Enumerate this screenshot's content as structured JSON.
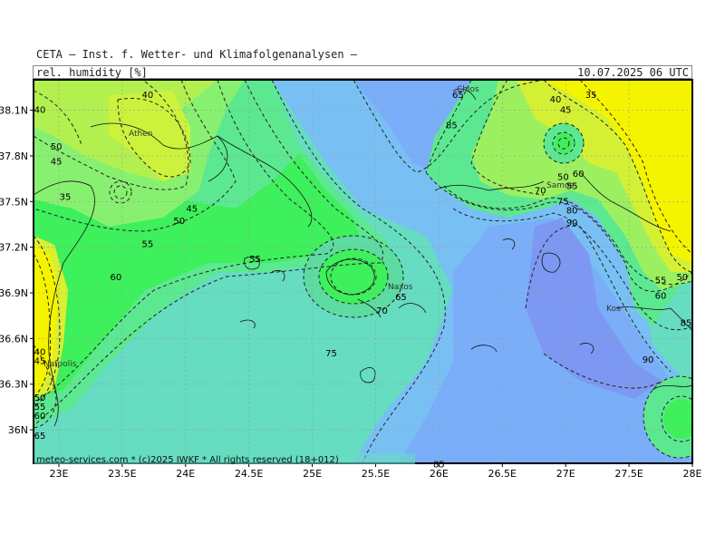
{
  "header": {
    "provider": "CETA — Inst. f. Wetter- und Klimafolgenanalysen —",
    "variable": "rel. humidity [%]",
    "valid_time": "10.07.2025 06 UTC"
  },
  "footer": {
    "credit": "meteo-services.com * (c)2025 IWKF * All rights reserved (18+012)"
  },
  "axes": {
    "lat_labels": [
      "38.1N",
      "37.8N",
      "37.5N",
      "37.2N",
      "36.9N",
      "36.6N",
      "36.3N",
      "36N"
    ],
    "lon_labels": [
      "23E",
      "23.5E",
      "24E",
      "24.5E",
      "25E",
      "25.5E",
      "26E",
      "26.5E",
      "27E",
      "27.5E",
      "28E"
    ]
  },
  "places": [
    "Athen",
    "Chios",
    "Naxos",
    "Nafpolis",
    "Kos",
    "Samos"
  ],
  "contour_labels": [
    {
      "v": "40",
      "lon": 22.85,
      "lat": 38.1
    },
    {
      "v": "40",
      "lon": 23.7,
      "lat": 38.2
    },
    {
      "v": "50",
      "lon": 22.98,
      "lat": 37.86
    },
    {
      "v": "45",
      "lon": 22.98,
      "lat": 37.76
    },
    {
      "v": "35",
      "lon": 23.05,
      "lat": 37.53
    },
    {
      "v": "45",
      "lon": 24.05,
      "lat": 37.45
    },
    {
      "v": "50",
      "lon": 23.95,
      "lat": 37.37
    },
    {
      "v": "55",
      "lon": 23.7,
      "lat": 37.22
    },
    {
      "v": "60",
      "lon": 23.45,
      "lat": 37.0
    },
    {
      "v": "55",
      "lon": 24.55,
      "lat": 37.12
    },
    {
      "v": "65",
      "lon": 25.7,
      "lat": 36.87
    },
    {
      "v": "70",
      "lon": 25.55,
      "lat": 36.78
    },
    {
      "v": "75",
      "lon": 25.15,
      "lat": 36.5
    },
    {
      "v": "85",
      "lon": 26.1,
      "lat": 38.0
    },
    {
      "v": "65",
      "lon": 26.15,
      "lat": 38.2
    },
    {
      "v": "70",
      "lon": 26.8,
      "lat": 37.57
    },
    {
      "v": "40",
      "lon": 26.92,
      "lat": 38.17
    },
    {
      "v": "45",
      "lon": 27.0,
      "lat": 38.1
    },
    {
      "v": "35",
      "lon": 27.2,
      "lat": 38.2
    },
    {
      "v": "50",
      "lon": 26.98,
      "lat": 37.66
    },
    {
      "v": "55",
      "lon": 27.05,
      "lat": 37.6
    },
    {
      "v": "60",
      "lon": 27.1,
      "lat": 37.68
    },
    {
      "v": "75",
      "lon": 26.98,
      "lat": 37.5
    },
    {
      "v": "80",
      "lon": 27.05,
      "lat": 37.44
    },
    {
      "v": "90",
      "lon": 27.05,
      "lat": 37.36
    },
    {
      "v": "55",
      "lon": 27.75,
      "lat": 36.98
    },
    {
      "v": "50",
      "lon": 27.92,
      "lat": 37.0
    },
    {
      "v": "60",
      "lon": 27.75,
      "lat": 36.88
    },
    {
      "v": "85",
      "lon": 27.95,
      "lat": 36.7
    },
    {
      "v": "90",
      "lon": 27.65,
      "lat": 36.46
    },
    {
      "v": "40",
      "lon": 22.85,
      "lat": 36.51
    },
    {
      "v": "45",
      "lon": 22.85,
      "lat": 36.45
    },
    {
      "v": "50",
      "lon": 22.85,
      "lat": 36.21
    },
    {
      "v": "55",
      "lon": 22.85,
      "lat": 36.15
    },
    {
      "v": "60",
      "lon": 22.85,
      "lat": 36.09
    },
    {
      "v": "65",
      "lon": 22.85,
      "lat": 35.96
    },
    {
      "v": "85",
      "lon": 26.0,
      "lat": 35.77
    }
  ]
}
